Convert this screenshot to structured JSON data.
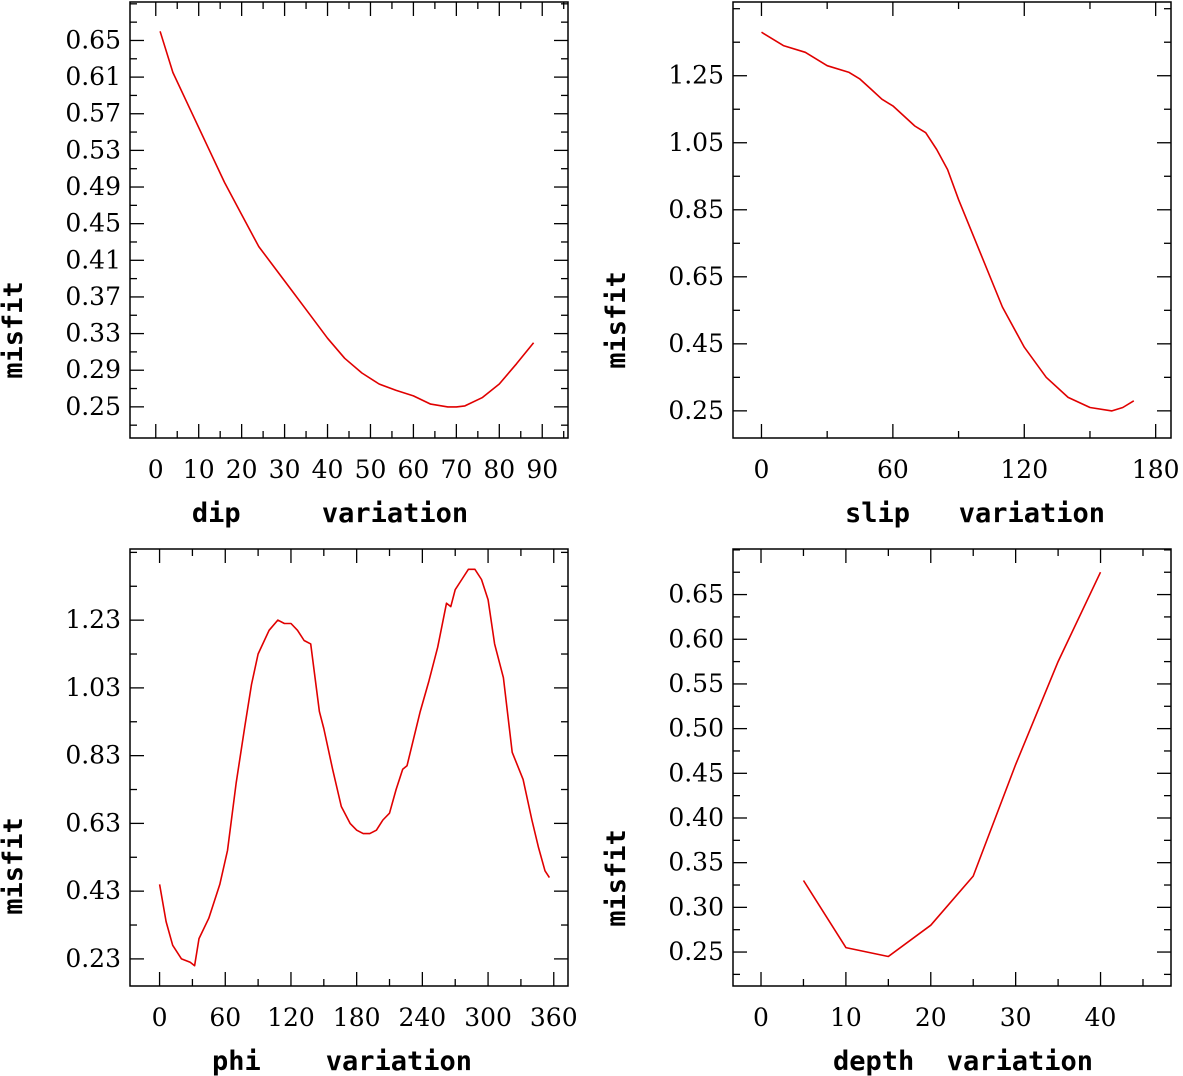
{
  "chart_data": [
    {
      "type": "line",
      "xlabel": "dip     variation",
      "ylabel": "misfit",
      "xlim": [
        -6,
        96
      ],
      "ylim": [
        0.216,
        0.692
      ],
      "xticks": [
        0,
        10,
        20,
        30,
        40,
        50,
        60,
        70,
        80,
        90
      ],
      "yticks": [
        0.25,
        0.29,
        0.33,
        0.37,
        0.41,
        0.45,
        0.49,
        0.53,
        0.57,
        0.61,
        0.65
      ],
      "xtick_labels": [
        "0",
        "10",
        "20",
        "30",
        "40",
        "50",
        "60",
        "70",
        "80",
        "90"
      ],
      "ytick_labels": [
        "0.25",
        "0.29",
        "0.33",
        "0.37",
        "0.41",
        "0.45",
        "0.49",
        "0.53",
        "0.57",
        "0.61",
        "0.65"
      ],
      "series": [
        {
          "name": "dip",
          "color": "#e00000",
          "x": [
            1,
            4,
            8,
            12,
            16,
            20,
            24,
            28,
            32,
            36,
            40,
            44,
            48,
            52,
            56,
            60,
            64,
            68,
            70,
            72,
            76,
            80,
            84,
            88
          ],
          "y": [
            0.66,
            0.615,
            0.575,
            0.535,
            0.495,
            0.46,
            0.425,
            0.4,
            0.375,
            0.35,
            0.325,
            0.303,
            0.287,
            0.275,
            0.268,
            0.262,
            0.253,
            0.25,
            0.25,
            0.251,
            0.26,
            0.275,
            0.297,
            0.32
          ]
        }
      ]
    },
    {
      "type": "line",
      "xlabel": "slip   variation",
      "ylabel": "misfit",
      "xlim": [
        -13,
        187
      ],
      "ylim": [
        0.169,
        1.47
      ],
      "xticks": [
        0,
        60,
        120,
        180
      ],
      "yticks": [
        0.25,
        0.45,
        0.65,
        0.85,
        1.05,
        1.25
      ],
      "xtick_labels": [
        "0",
        "60",
        "120",
        "180"
      ],
      "ytick_labels": [
        "0.25",
        "0.45",
        "0.65",
        "0.85",
        "1.05",
        "1.25"
      ],
      "series": [
        {
          "name": "slip",
          "color": "#e00000",
          "x": [
            0,
            10,
            20,
            30,
            40,
            45,
            50,
            55,
            60,
            65,
            70,
            75,
            80,
            85,
            90,
            100,
            110,
            120,
            130,
            140,
            150,
            160,
            165,
            170
          ],
          "y": [
            1.38,
            1.34,
            1.32,
            1.28,
            1.26,
            1.24,
            1.21,
            1.18,
            1.16,
            1.13,
            1.1,
            1.08,
            1.03,
            0.97,
            0.88,
            0.72,
            0.56,
            0.44,
            0.35,
            0.29,
            0.26,
            0.25,
            0.26,
            0.28
          ]
        }
      ]
    },
    {
      "type": "line",
      "xlabel": "phi    variation",
      "ylabel": "misfit",
      "xlim": [
        -27,
        373
      ],
      "ylim": [
        0.15,
        1.44
      ],
      "xticks": [
        0,
        60,
        120,
        180,
        240,
        300,
        360
      ],
      "yticks": [
        0.23,
        0.43,
        0.63,
        0.83,
        1.03,
        1.23
      ],
      "xtick_labels": [
        "0",
        "60",
        "120",
        "180",
        "240",
        "300",
        "360"
      ],
      "ytick_labels": [
        "0.23",
        "0.43",
        "0.63",
        "0.83",
        "1.03",
        "1.23"
      ],
      "series": [
        {
          "name": "phi",
          "color": "#e00000",
          "x": [
            0,
            6,
            12,
            20,
            28,
            32,
            36,
            45,
            55,
            62,
            70,
            78,
            84,
            90,
            100,
            108,
            114,
            120,
            126,
            132,
            138,
            146,
            150,
            158,
            166,
            174,
            180,
            186,
            192,
            198,
            204,
            210,
            216,
            222,
            226,
            232,
            238,
            246,
            254,
            262,
            266,
            270,
            276,
            282,
            288,
            294,
            300,
            306,
            314,
            322,
            332,
            340,
            346,
            352,
            356
          ],
          "y": [
            0.45,
            0.34,
            0.27,
            0.23,
            0.22,
            0.21,
            0.29,
            0.35,
            0.45,
            0.55,
            0.75,
            0.92,
            1.04,
            1.13,
            1.2,
            1.23,
            1.22,
            1.22,
            1.2,
            1.17,
            1.16,
            0.96,
            0.91,
            0.79,
            0.68,
            0.63,
            0.61,
            0.6,
            0.6,
            0.61,
            0.64,
            0.66,
            0.73,
            0.79,
            0.8,
            0.88,
            0.96,
            1.05,
            1.15,
            1.28,
            1.27,
            1.32,
            1.35,
            1.38,
            1.38,
            1.35,
            1.29,
            1.16,
            1.06,
            0.84,
            0.76,
            0.64,
            0.56,
            0.49,
            0.47
          ]
        }
      ]
    },
    {
      "type": "line",
      "xlabel": "depth  variation",
      "ylabel": "misfit",
      "xlim": [
        -3.3,
        48.3
      ],
      "ylim": [
        0.212,
        0.701
      ],
      "xticks": [
        0,
        10,
        20,
        30,
        40
      ],
      "yticks": [
        0.25,
        0.3,
        0.35,
        0.4,
        0.45,
        0.5,
        0.55,
        0.6,
        0.65
      ],
      "xtick_labels": [
        "0",
        "10",
        "20",
        "30",
        "40"
      ],
      "ytick_labels": [
        "0.25",
        "0.30",
        "0.35",
        "0.40",
        "0.45",
        "0.50",
        "0.55",
        "0.60",
        "0.65"
      ],
      "series": [
        {
          "name": "depth",
          "color": "#e00000",
          "x": [
            5,
            10,
            15,
            20,
            25,
            30,
            35,
            40
          ],
          "y": [
            0.33,
            0.255,
            0.245,
            0.28,
            0.335,
            0.46,
            0.575,
            0.675
          ]
        }
      ]
    }
  ]
}
